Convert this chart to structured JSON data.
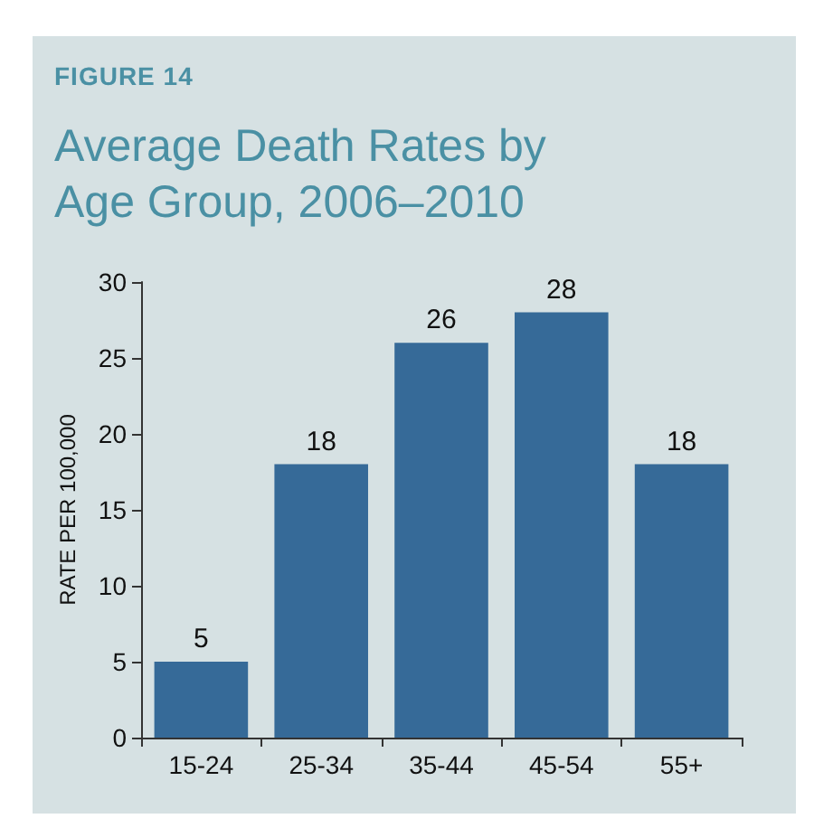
{
  "chart_data": {
    "type": "bar",
    "subtitle": "FIGURE 14",
    "title": "Average Death Rates by Age Group, 2006–2010",
    "ylabel": "RATE PER 100,000",
    "categories": [
      "15-24",
      "25-34",
      "35-44",
      "45-54",
      "55+"
    ],
    "values": [
      5,
      18,
      26,
      28,
      18
    ],
    "color": "#366a98",
    "ylim": [
      0,
      30
    ],
    "yticks": [
      0,
      5,
      10,
      15,
      20,
      25,
      30
    ],
    "data_labels": true
  }
}
